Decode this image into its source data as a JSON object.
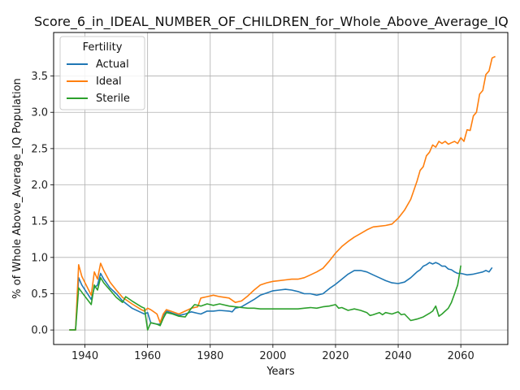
{
  "chart_data": {
    "type": "line",
    "title": "Score_6_in_IDEAL_NUMBER_OF_CHILDREN_for_Whole_Above_Average_IQ",
    "xlabel": "Years",
    "ylabel": "% of Whole Above_Average_IQ Population",
    "xlim": [
      1930,
      2075
    ],
    "ylim": [
      -0.2,
      4.1
    ],
    "xticks": [
      1940,
      1960,
      1980,
      2000,
      2020,
      2040,
      2060
    ],
    "yticks": [
      0.0,
      0.5,
      1.0,
      1.5,
      2.0,
      2.5,
      3.0,
      3.5
    ],
    "grid": true,
    "legend": {
      "title": "Fertility",
      "placement": "top-left"
    },
    "series": [
      {
        "name": "Actual",
        "color": "#1f77b4",
        "points": [
          [
            1935,
            0
          ],
          [
            1937,
            0
          ],
          [
            1938,
            0.72
          ],
          [
            1939,
            0.62
          ],
          [
            1942,
            0.42
          ],
          [
            1943,
            0.58
          ],
          [
            1944,
            0.62
          ],
          [
            1945,
            0.78
          ],
          [
            1946,
            0.7
          ],
          [
            1948,
            0.58
          ],
          [
            1950,
            0.5
          ],
          [
            1952,
            0.4
          ],
          [
            1955,
            0.3
          ],
          [
            1958,
            0.24
          ],
          [
            1959,
            0.22
          ],
          [
            1960,
            0.24
          ],
          [
            1961,
            0.1
          ],
          [
            1963,
            0.08
          ],
          [
            1964,
            0.08
          ],
          [
            1965,
            0.2
          ],
          [
            1966,
            0.26
          ],
          [
            1968,
            0.23
          ],
          [
            1970,
            0.2
          ],
          [
            1972,
            0.22
          ],
          [
            1974,
            0.25
          ],
          [
            1976,
            0.23
          ],
          [
            1977,
            0.22
          ],
          [
            1979,
            0.26
          ],
          [
            1981,
            0.26
          ],
          [
            1983,
            0.27
          ],
          [
            1986,
            0.26
          ],
          [
            1987,
            0.25
          ],
          [
            1988,
            0.3
          ],
          [
            1990,
            0.32
          ],
          [
            1992,
            0.37
          ],
          [
            1994,
            0.42
          ],
          [
            1996,
            0.48
          ],
          [
            1998,
            0.51
          ],
          [
            2000,
            0.54
          ],
          [
            2002,
            0.55
          ],
          [
            2004,
            0.56
          ],
          [
            2006,
            0.55
          ],
          [
            2008,
            0.53
          ],
          [
            2010,
            0.5
          ],
          [
            2012,
            0.5
          ],
          [
            2014,
            0.48
          ],
          [
            2016,
            0.5
          ],
          [
            2018,
            0.57
          ],
          [
            2020,
            0.63
          ],
          [
            2022,
            0.7
          ],
          [
            2024,
            0.77
          ],
          [
            2026,
            0.82
          ],
          [
            2028,
            0.82
          ],
          [
            2030,
            0.8
          ],
          [
            2032,
            0.76
          ],
          [
            2034,
            0.72
          ],
          [
            2036,
            0.68
          ],
          [
            2038,
            0.65
          ],
          [
            2040,
            0.64
          ],
          [
            2042,
            0.66
          ],
          [
            2044,
            0.72
          ],
          [
            2046,
            0.8
          ],
          [
            2047,
            0.83
          ],
          [
            2048,
            0.88
          ],
          [
            2049,
            0.9
          ],
          [
            2050,
            0.93
          ],
          [
            2051,
            0.91
          ],
          [
            2052,
            0.93
          ],
          [
            2053,
            0.91
          ],
          [
            2054,
            0.88
          ],
          [
            2055,
            0.88
          ],
          [
            2056,
            0.84
          ],
          [
            2057,
            0.83
          ],
          [
            2058,
            0.8
          ],
          [
            2059,
            0.78
          ],
          [
            2060,
            0.78
          ],
          [
            2061,
            0.77
          ],
          [
            2062,
            0.76
          ],
          [
            2064,
            0.77
          ],
          [
            2066,
            0.79
          ],
          [
            2067,
            0.8
          ],
          [
            2068,
            0.82
          ],
          [
            2069,
            0.8
          ],
          [
            2070,
            0.86
          ]
        ]
      },
      {
        "name": "Ideal",
        "color": "#ff7f0e",
        "points": [
          [
            1935,
            0
          ],
          [
            1937,
            0
          ],
          [
            1938,
            0.9
          ],
          [
            1939,
            0.74
          ],
          [
            1942,
            0.48
          ],
          [
            1943,
            0.8
          ],
          [
            1944,
            0.7
          ],
          [
            1945,
            0.92
          ],
          [
            1946,
            0.82
          ],
          [
            1948,
            0.66
          ],
          [
            1950,
            0.55
          ],
          [
            1952,
            0.45
          ],
          [
            1955,
            0.36
          ],
          [
            1958,
            0.28
          ],
          [
            1959,
            0.26
          ],
          [
            1960,
            0.3
          ],
          [
            1961,
            0.28
          ],
          [
            1963,
            0.22
          ],
          [
            1964,
            0.1
          ],
          [
            1965,
            0.22
          ],
          [
            1966,
            0.28
          ],
          [
            1968,
            0.25
          ],
          [
            1970,
            0.22
          ],
          [
            1972,
            0.26
          ],
          [
            1974,
            0.3
          ],
          [
            1976,
            0.32
          ],
          [
            1977,
            0.44
          ],
          [
            1979,
            0.46
          ],
          [
            1981,
            0.48
          ],
          [
            1983,
            0.46
          ],
          [
            1986,
            0.44
          ],
          [
            1988,
            0.38
          ],
          [
            1990,
            0.4
          ],
          [
            1992,
            0.47
          ],
          [
            1994,
            0.55
          ],
          [
            1996,
            0.62
          ],
          [
            1998,
            0.65
          ],
          [
            2000,
            0.67
          ],
          [
            2002,
            0.68
          ],
          [
            2004,
            0.69
          ],
          [
            2006,
            0.7
          ],
          [
            2008,
            0.7
          ],
          [
            2010,
            0.72
          ],
          [
            2012,
            0.76
          ],
          [
            2014,
            0.8
          ],
          [
            2016,
            0.85
          ],
          [
            2018,
            0.95
          ],
          [
            2020,
            1.06
          ],
          [
            2022,
            1.15
          ],
          [
            2024,
            1.22
          ],
          [
            2026,
            1.28
          ],
          [
            2028,
            1.33
          ],
          [
            2030,
            1.38
          ],
          [
            2032,
            1.42
          ],
          [
            2034,
            1.43
          ],
          [
            2036,
            1.44
          ],
          [
            2038,
            1.46
          ],
          [
            2040,
            1.54
          ],
          [
            2042,
            1.65
          ],
          [
            2044,
            1.8
          ],
          [
            2046,
            2.05
          ],
          [
            2047,
            2.2
          ],
          [
            2048,
            2.25
          ],
          [
            2049,
            2.4
          ],
          [
            2050,
            2.45
          ],
          [
            2051,
            2.55
          ],
          [
            2052,
            2.52
          ],
          [
            2053,
            2.6
          ],
          [
            2054,
            2.57
          ],
          [
            2055,
            2.6
          ],
          [
            2056,
            2.56
          ],
          [
            2057,
            2.58
          ],
          [
            2058,
            2.6
          ],
          [
            2059,
            2.57
          ],
          [
            2060,
            2.65
          ],
          [
            2061,
            2.6
          ],
          [
            2062,
            2.76
          ],
          [
            2063,
            2.75
          ],
          [
            2064,
            2.95
          ],
          [
            2065,
            3.0
          ],
          [
            2066,
            3.25
          ],
          [
            2067,
            3.3
          ],
          [
            2068,
            3.52
          ],
          [
            2069,
            3.57
          ],
          [
            2070,
            3.75
          ],
          [
            2071,
            3.77
          ]
        ]
      },
      {
        "name": "Sterile",
        "color": "#2ca02c",
        "points": [
          [
            1935,
            0
          ],
          [
            1937,
            0
          ],
          [
            1938,
            0.58
          ],
          [
            1939,
            0.52
          ],
          [
            1942,
            0.35
          ],
          [
            1943,
            0.62
          ],
          [
            1944,
            0.55
          ],
          [
            1945,
            0.72
          ],
          [
            1946,
            0.65
          ],
          [
            1948,
            0.55
          ],
          [
            1950,
            0.45
          ],
          [
            1952,
            0.38
          ],
          [
            1953,
            0.46
          ],
          [
            1955,
            0.4
          ],
          [
            1958,
            0.32
          ],
          [
            1959,
            0.3
          ],
          [
            1960,
            0.0
          ],
          [
            1961,
            0.1
          ],
          [
            1963,
            0.08
          ],
          [
            1964,
            0.06
          ],
          [
            1965,
            0.16
          ],
          [
            1966,
            0.24
          ],
          [
            1968,
            0.22
          ],
          [
            1970,
            0.19
          ],
          [
            1972,
            0.18
          ],
          [
            1974,
            0.3
          ],
          [
            1975,
            0.35
          ],
          [
            1977,
            0.33
          ],
          [
            1979,
            0.36
          ],
          [
            1981,
            0.34
          ],
          [
            1983,
            0.36
          ],
          [
            1986,
            0.33
          ],
          [
            1988,
            0.32
          ],
          [
            1990,
            0.31
          ],
          [
            1992,
            0.3
          ],
          [
            1994,
            0.3
          ],
          [
            1996,
            0.29
          ],
          [
            1998,
            0.29
          ],
          [
            2000,
            0.29
          ],
          [
            2002,
            0.29
          ],
          [
            2004,
            0.29
          ],
          [
            2006,
            0.29
          ],
          [
            2008,
            0.29
          ],
          [
            2010,
            0.3
          ],
          [
            2012,
            0.31
          ],
          [
            2014,
            0.3
          ],
          [
            2016,
            0.32
          ],
          [
            2018,
            0.33
          ],
          [
            2020,
            0.35
          ],
          [
            2021,
            0.3
          ],
          [
            2022,
            0.31
          ],
          [
            2024,
            0.27
          ],
          [
            2026,
            0.29
          ],
          [
            2028,
            0.27
          ],
          [
            2030,
            0.24
          ],
          [
            2031,
            0.2
          ],
          [
            2032,
            0.21
          ],
          [
            2034,
            0.24
          ],
          [
            2035,
            0.21
          ],
          [
            2036,
            0.24
          ],
          [
            2038,
            0.22
          ],
          [
            2040,
            0.25
          ],
          [
            2041,
            0.21
          ],
          [
            2042,
            0.22
          ],
          [
            2044,
            0.13
          ],
          [
            2046,
            0.15
          ],
          [
            2048,
            0.18
          ],
          [
            2050,
            0.23
          ],
          [
            2051,
            0.26
          ],
          [
            2052,
            0.33
          ],
          [
            2053,
            0.19
          ],
          [
            2054,
            0.22
          ],
          [
            2055,
            0.26
          ],
          [
            2056,
            0.3
          ],
          [
            2057,
            0.38
          ],
          [
            2058,
            0.5
          ],
          [
            2059,
            0.62
          ],
          [
            2060,
            0.89
          ]
        ]
      }
    ]
  }
}
